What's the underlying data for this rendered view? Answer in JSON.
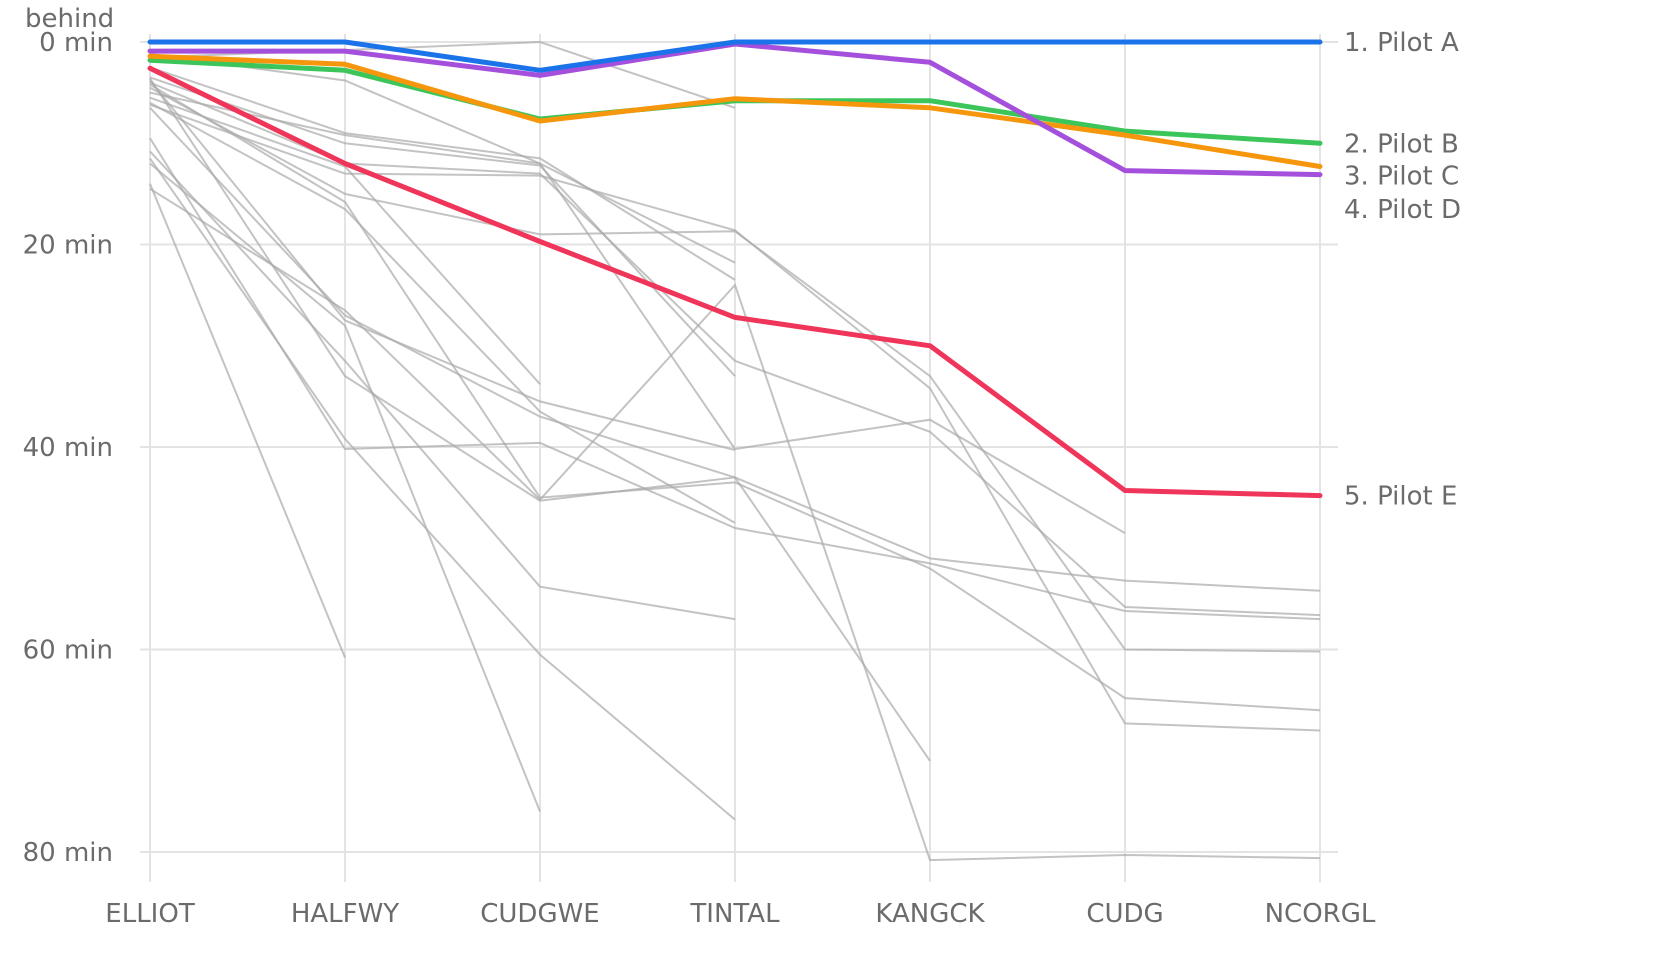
{
  "chart_data": {
    "type": "line",
    "title": "",
    "xlabel": "",
    "ylabel": "behind",
    "y_unit": "min",
    "y_inverted": true,
    "ylim": [
      0,
      80
    ],
    "y_ticks": [
      0,
      20,
      40,
      60,
      80
    ],
    "y_tick_labels": [
      "0 min",
      "20 min",
      "40 min",
      "60 min",
      "80 min"
    ],
    "grid": true,
    "categories": [
      "ELLIOT",
      "HALFWY",
      "CUDGWE",
      "TINTAL",
      "KANGCK",
      "CUDG",
      "NCORGL"
    ],
    "highlight_series": [
      {
        "name": "1. Pilot A",
        "color": "#1a73e8",
        "values": [
          0,
          0,
          2.8,
          0,
          0,
          0,
          0
        ],
        "label_y": 0
      },
      {
        "name": "2. Pilot B",
        "color": "#3cc55a",
        "values": [
          1.8,
          2.8,
          7.6,
          5.8,
          5.8,
          8.8,
          10
        ],
        "label_y": 10
      },
      {
        "name": "3. Pilot C",
        "color": "#f5960c",
        "values": [
          1.4,
          2.2,
          7.8,
          5.6,
          6.5,
          9.2,
          12.3
        ],
        "label_y": 13.2
      },
      {
        "name": "4. Pilot D",
        "color": "#a550dc",
        "values": [
          0.9,
          0.9,
          3.3,
          0.2,
          2.0,
          12.7,
          13.1
        ],
        "label_y": 16.5
      },
      {
        "name": "5. Pilot E",
        "color": "#f0355a",
        "values": [
          2.6,
          12,
          19.7,
          27.2,
          30,
          44.3,
          44.8
        ],
        "label_y": 44.8
      }
    ],
    "background_series": [
      {
        "values": [
          1.5,
          0.8,
          0,
          6.5,
          null,
          null,
          null
        ]
      },
      {
        "values": [
          1.2,
          3.8,
          12,
          21.8,
          null,
          null,
          null
        ]
      },
      {
        "values": [
          2.5,
          9,
          11.5,
          23.5,
          null,
          null,
          null
        ]
      },
      {
        "values": [
          3.5,
          10,
          12.2,
          33,
          null,
          null,
          null
        ]
      },
      {
        "values": [
          4,
          12,
          13,
          31.5,
          38.5,
          55.8,
          56.6
        ]
      },
      {
        "values": [
          4.5,
          15,
          19,
          18.7,
          33,
          60,
          60.2
        ]
      },
      {
        "values": [
          5,
          9.2,
          12,
          40.2,
          37.3,
          48.5,
          null
        ]
      },
      {
        "values": [
          5.5,
          12.3,
          33.8,
          null,
          null,
          null,
          null
        ]
      },
      {
        "values": [
          6,
          16.5,
          36.5,
          47.5,
          null,
          null,
          null
        ]
      },
      {
        "values": [
          3.8,
          27.5,
          35.5,
          40.3,
          null,
          null,
          null
        ]
      },
      {
        "values": [
          4.2,
          15.8,
          45,
          43.5,
          52,
          64.8,
          66
        ]
      },
      {
        "values": [
          6.5,
          27,
          37,
          43,
          51,
          53.2,
          54.2
        ]
      },
      {
        "values": [
          3.6,
          33,
          45.3,
          43,
          71,
          null,
          null
        ]
      },
      {
        "values": [
          9.5,
          40.2,
          39.6,
          48,
          51.5,
          56.2,
          57
        ]
      },
      {
        "values": [
          10.8,
          31.5,
          53.8,
          57,
          null,
          null,
          null
        ]
      },
      {
        "values": [
          11.5,
          39.2,
          60.5,
          76.8,
          null,
          null,
          null
        ]
      },
      {
        "values": [
          12,
          28,
          76,
          null,
          null,
          null,
          null
        ]
      },
      {
        "values": [
          14,
          60.8,
          null,
          null,
          null,
          null,
          null
        ]
      },
      {
        "values": [
          14.5,
          26.5,
          45.2,
          24,
          80.8,
          80.3,
          80.6
        ]
      },
      {
        "values": [
          6.2,
          13,
          13.2,
          18.6,
          34.2,
          67.3,
          68
        ]
      }
    ]
  }
}
